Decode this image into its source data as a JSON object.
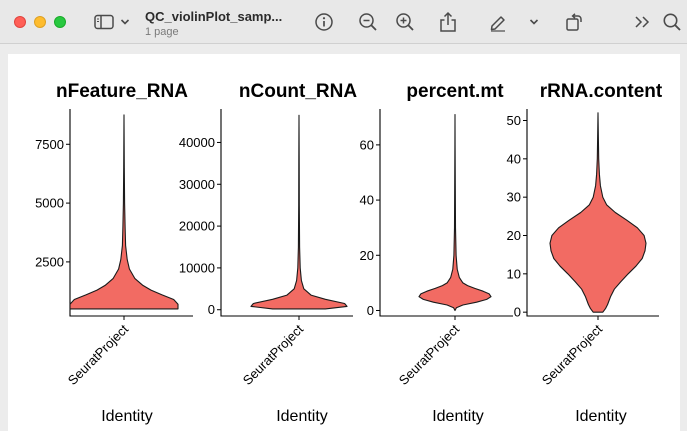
{
  "window": {
    "title": "QC_violinPlot_samp...",
    "subtitle": "1 page"
  },
  "toolbar": {
    "icons": [
      "sidebar-icon",
      "chevron-down-icon",
      "info-icon",
      "zoom-out-icon",
      "zoom-in-icon",
      "share-icon",
      "markup-pen-icon",
      "chevron-down-icon",
      "rotate-icon",
      "more-icon",
      "search-icon"
    ]
  },
  "chart_data": [
    {
      "type": "violin",
      "title": "nFeature_RNA",
      "xlabel": "Identity",
      "categories": [
        "SeuratProject"
      ],
      "yticks": [
        "2500",
        "5000",
        "7500"
      ],
      "ylim": [
        200,
        9000
      ],
      "range": [
        500,
        8750
      ],
      "color": "#f26b63",
      "profile": [
        [
          500,
          1.0
        ],
        [
          700,
          1.0
        ],
        [
          900,
          0.92
        ],
        [
          1100,
          0.7
        ],
        [
          1300,
          0.5
        ],
        [
          1500,
          0.35
        ],
        [
          1800,
          0.2
        ],
        [
          2200,
          0.1
        ],
        [
          2600,
          0.06
        ],
        [
          3200,
          0.03
        ],
        [
          4000,
          0.02
        ],
        [
          5000,
          0.012
        ],
        [
          6500,
          0.006
        ],
        [
          8750,
          0.0
        ]
      ]
    },
    {
      "type": "violin",
      "title": "nCount_RNA",
      "xlabel": "Identity",
      "categories": [
        "SeuratProject"
      ],
      "yticks": [
        "0",
        "10000",
        "20000",
        "30000",
        "40000"
      ],
      "ylim": [
        -1500,
        48000
      ],
      "range": [
        200,
        46500
      ],
      "color": "#f26b63",
      "profile": [
        [
          200,
          0.55
        ],
        [
          800,
          1.0
        ],
        [
          1500,
          0.95
        ],
        [
          2500,
          0.55
        ],
        [
          3500,
          0.25
        ],
        [
          5000,
          0.1
        ],
        [
          7000,
          0.05
        ],
        [
          10000,
          0.025
        ],
        [
          15000,
          0.012
        ],
        [
          25000,
          0.006
        ],
        [
          35000,
          0.004
        ],
        [
          46500,
          0.0
        ]
      ]
    },
    {
      "type": "violin",
      "title": "percent.mt",
      "xlabel": "Identity",
      "categories": [
        "SeuratProject"
      ],
      "yticks": [
        "0",
        "20",
        "40",
        "60"
      ],
      "ylim": [
        -2,
        73
      ],
      "range": [
        0,
        71
      ],
      "color": "#f26b63",
      "profile": [
        [
          0,
          0.0
        ],
        [
          1,
          0.04
        ],
        [
          2,
          0.22
        ],
        [
          3,
          0.6
        ],
        [
          4,
          0.88
        ],
        [
          5,
          1.0
        ],
        [
          6,
          0.95
        ],
        [
          7,
          0.78
        ],
        [
          8,
          0.55
        ],
        [
          9,
          0.35
        ],
        [
          10,
          0.22
        ],
        [
          12,
          0.12
        ],
        [
          15,
          0.06
        ],
        [
          20,
          0.03
        ],
        [
          30,
          0.015
        ],
        [
          45,
          0.008
        ],
        [
          60,
          0.004
        ],
        [
          71,
          0.0
        ]
      ]
    },
    {
      "type": "violin",
      "title": "rRNA.content",
      "xlabel": "Identity",
      "categories": [
        "SeuratProject"
      ],
      "yticks": [
        "0",
        "10",
        "20",
        "30",
        "40",
        "50"
      ],
      "ylim": [
        -1,
        53
      ],
      "range": [
        0,
        52
      ],
      "color": "#f26b63",
      "profile": [
        [
          0,
          0.1
        ],
        [
          1,
          0.16
        ],
        [
          2,
          0.2
        ],
        [
          4,
          0.26
        ],
        [
          6,
          0.34
        ],
        [
          8,
          0.48
        ],
        [
          10,
          0.63
        ],
        [
          12,
          0.79
        ],
        [
          14,
          0.92
        ],
        [
          16,
          0.98
        ],
        [
          18,
          1.0
        ],
        [
          20,
          0.96
        ],
        [
          22,
          0.82
        ],
        [
          24,
          0.6
        ],
        [
          26,
          0.36
        ],
        [
          28,
          0.18
        ],
        [
          30,
          0.1
        ],
        [
          33,
          0.05
        ],
        [
          36,
          0.03
        ],
        [
          40,
          0.015
        ],
        [
          45,
          0.008
        ],
        [
          52,
          0.0
        ]
      ]
    }
  ]
}
